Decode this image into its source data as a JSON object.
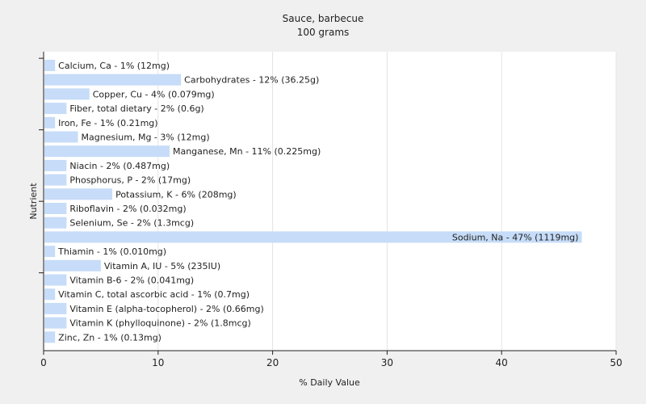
{
  "chart_data": {
    "type": "bar",
    "orientation": "horizontal",
    "title": "Sauce, barbecue",
    "subtitle": "100 grams",
    "xlabel": "% Daily Value",
    "ylabel": "Nutrient",
    "xlim": [
      0,
      50
    ],
    "xticks": [
      "0",
      "10",
      "20",
      "30",
      "40",
      "50"
    ],
    "grid": true,
    "bar_color": "#c6dcf8",
    "categories": [
      "Calcium, Ca",
      "Carbohydrates",
      "Copper, Cu",
      "Fiber, total dietary",
      "Iron, Fe",
      "Magnesium, Mg",
      "Manganese, Mn",
      "Niacin",
      "Phosphorus, P",
      "Potassium, K",
      "Riboflavin",
      "Selenium, Se",
      "Sodium, Na",
      "Thiamin",
      "Vitamin A, IU",
      "Vitamin B-6",
      "Vitamin C, total ascorbic acid",
      "Vitamin E (alpha-tocopherol)",
      "Vitamin K (phylloquinone)",
      "Zinc, Zn"
    ],
    "values": [
      1,
      12,
      4,
      2,
      1,
      3,
      11,
      2,
      2,
      6,
      2,
      2,
      47,
      1,
      5,
      2,
      1,
      2,
      2,
      1
    ],
    "data_labels": [
      "Calcium, Ca - 1% (12mg)",
      "Carbohydrates - 12% (36.25g)",
      "Copper, Cu - 4% (0.079mg)",
      "Fiber, total dietary - 2% (0.6g)",
      "Iron, Fe - 1% (0.21mg)",
      "Magnesium, Mg - 3% (12mg)",
      "Manganese, Mn - 11% (0.225mg)",
      "Niacin - 2% (0.487mg)",
      "Phosphorus, P - 2% (17mg)",
      "Potassium, K - 6% (208mg)",
      "Riboflavin - 2% (0.032mg)",
      "Selenium, Se - 2% (1.3mcg)",
      "Sodium, Na - 47% (1119mg)",
      "Thiamin - 1% (0.010mg)",
      "Vitamin A, IU - 5% (235IU)",
      "Vitamin B-6 - 2% (0.041mg)",
      "Vitamin C, total ascorbic acid - 1% (0.7mg)",
      "Vitamin E (alpha-tocopherol) - 2% (0.66mg)",
      "Vitamin K (phylloquinone) - 2% (1.8mcg)",
      "Zinc, Zn - 1% (0.13mg)"
    ]
  }
}
